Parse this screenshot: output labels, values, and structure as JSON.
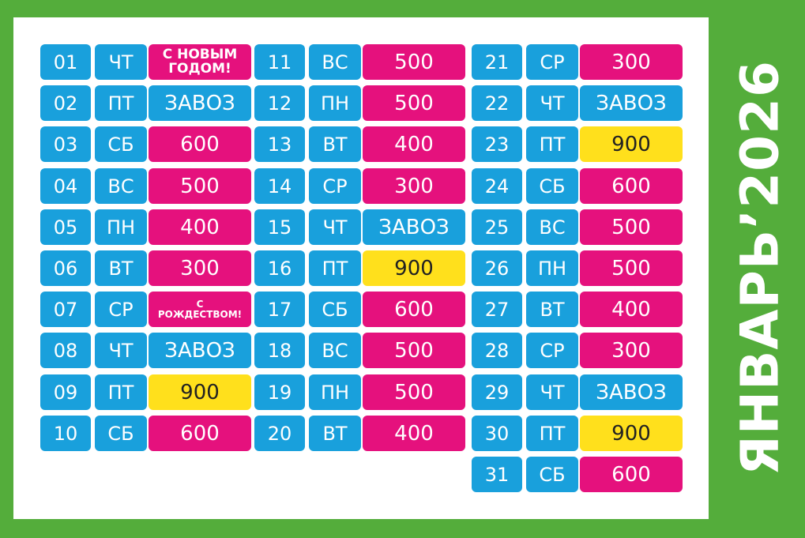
{
  "title": "ЯНВАРЬ’2026",
  "colors": {
    "background": "#54ad3b",
    "blue": "#19a0dc",
    "pink": "#e5117d",
    "yellow": "#ffe01c"
  },
  "columns": [
    {
      "days": [
        {
          "day": "01",
          "dow": "ЧТ",
          "val": [
            "С НОВЫМ",
            "ГОДОМ!"
          ],
          "color": "pink",
          "greet": "g1"
        },
        {
          "day": "02",
          "dow": "ПТ",
          "val": "ЗАВОЗ",
          "color": "blue"
        },
        {
          "day": "03",
          "dow": "СБ",
          "val": "600",
          "color": "pink"
        },
        {
          "day": "04",
          "dow": "ВС",
          "val": "500",
          "color": "pink"
        },
        {
          "day": "05",
          "dow": "ПН",
          "val": "400",
          "color": "pink"
        },
        {
          "day": "06",
          "dow": "ВТ",
          "val": "300",
          "color": "pink"
        },
        {
          "day": "07",
          "dow": "СР",
          "val": [
            "С",
            "РОЖДЕСТВОМ!"
          ],
          "color": "pink",
          "greet": "g2"
        },
        {
          "day": "08",
          "dow": "ЧТ",
          "val": "ЗАВОЗ",
          "color": "blue"
        },
        {
          "day": "09",
          "dow": "ПТ",
          "val": "900",
          "color": "yellow"
        },
        {
          "day": "10",
          "dow": "СБ",
          "val": "600",
          "color": "pink"
        }
      ]
    },
    {
      "days": [
        {
          "day": "11",
          "dow": "ВС",
          "val": "500",
          "color": "pink"
        },
        {
          "day": "12",
          "dow": "ПН",
          "val": "500",
          "color": "pink"
        },
        {
          "day": "13",
          "dow": "ВТ",
          "val": "400",
          "color": "pink"
        },
        {
          "day": "14",
          "dow": "СР",
          "val": "300",
          "color": "pink"
        },
        {
          "day": "15",
          "dow": "ЧТ",
          "val": "ЗАВОЗ",
          "color": "blue"
        },
        {
          "day": "16",
          "dow": "ПТ",
          "val": "900",
          "color": "yellow"
        },
        {
          "day": "17",
          "dow": "СБ",
          "val": "600",
          "color": "pink"
        },
        {
          "day": "18",
          "dow": "ВС",
          "val": "500",
          "color": "pink"
        },
        {
          "day": "19",
          "dow": "ПН",
          "val": "500",
          "color": "pink"
        },
        {
          "day": "20",
          "dow": "ВТ",
          "val": "400",
          "color": "pink"
        }
      ]
    },
    {
      "days": [
        {
          "day": "21",
          "dow": "СР",
          "val": "300",
          "color": "pink"
        },
        {
          "day": "22",
          "dow": "ЧТ",
          "val": "ЗАВОЗ",
          "color": "blue"
        },
        {
          "day": "23",
          "dow": "ПТ",
          "val": "900",
          "color": "yellow"
        },
        {
          "day": "24",
          "dow": "СБ",
          "val": "600",
          "color": "pink"
        },
        {
          "day": "25",
          "dow": "ВС",
          "val": "500",
          "color": "pink"
        },
        {
          "day": "26",
          "dow": "ПН",
          "val": "500",
          "color": "pink"
        },
        {
          "day": "27",
          "dow": "ВТ",
          "val": "400",
          "color": "pink"
        },
        {
          "day": "28",
          "dow": "СР",
          "val": "300",
          "color": "pink"
        },
        {
          "day": "29",
          "dow": "ЧТ",
          "val": "ЗАВОЗ",
          "color": "blue"
        },
        {
          "day": "30",
          "dow": "ПТ",
          "val": "900",
          "color": "yellow"
        },
        {
          "day": "31",
          "dow": "СБ",
          "val": "600",
          "color": "pink"
        }
      ]
    }
  ]
}
